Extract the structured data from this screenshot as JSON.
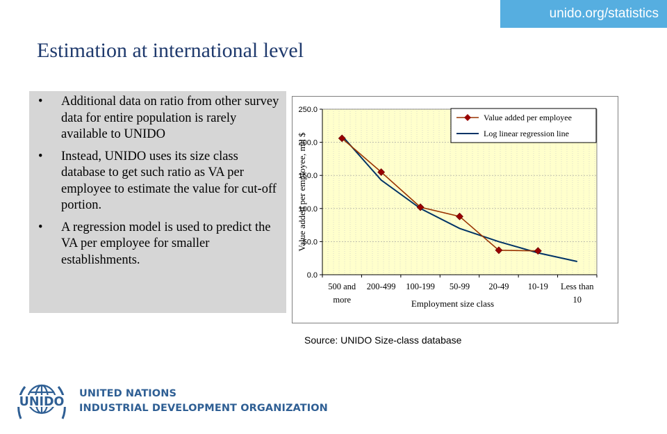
{
  "header": {
    "url": "unido.org/statistics"
  },
  "slide": {
    "title": "Estimation at international level",
    "bullets": [
      "Additional data on ratio from other survey data for entire population is rarely available to UNIDO",
      "Instead, UNIDO uses its size class database to get such ratio as VA per employee to estimate the value for cut-off portion.",
      "A regression model is used to predict the VA per employee for smaller establishments."
    ],
    "source": "Source: UNIDO Size-class database"
  },
  "logo": {
    "wordmark": "UNIDO",
    "line1": "UNITED NATIONS",
    "line2": "INDUSTRIAL DEVELOPMENT ORGANIZATION"
  },
  "colors": {
    "brand_blue": "#1f3a6d",
    "badge_blue": "#56aee0",
    "panel_gray": "#d6d6d6",
    "series_va": "#993300",
    "marker_va": "#990000",
    "series_reg": "#003366",
    "plot_bg": "#ffffcc"
  },
  "chart_data": {
    "type": "line",
    "categories": [
      "500 and more",
      "200-499",
      "100-199",
      "50-99",
      "20-49",
      "10-19",
      "Less than 10"
    ],
    "category_label_lines": [
      [
        "500 and",
        "more"
      ],
      [
        "200-499"
      ],
      [
        "100-199"
      ],
      [
        "50-99"
      ],
      [
        "20-49"
      ],
      [
        "10-19"
      ],
      [
        "Less than",
        "10"
      ]
    ],
    "xlabel": "Employment size class",
    "ylabel": "Value added per employee, mil $",
    "ylim": [
      0,
      250
    ],
    "yticks": [
      "0.0",
      "50.0",
      "100.0",
      "150.0",
      "200.0",
      "250.0"
    ],
    "grid": true,
    "legend_position": "top-right",
    "series": [
      {
        "name": "Value added per employee",
        "values": [
          206,
          155,
          102,
          88,
          37,
          36,
          null
        ],
        "marker": "diamond"
      },
      {
        "name": "Log linear regression line",
        "values": [
          210,
          143,
          100,
          70,
          50,
          33,
          20
        ]
      }
    ]
  }
}
